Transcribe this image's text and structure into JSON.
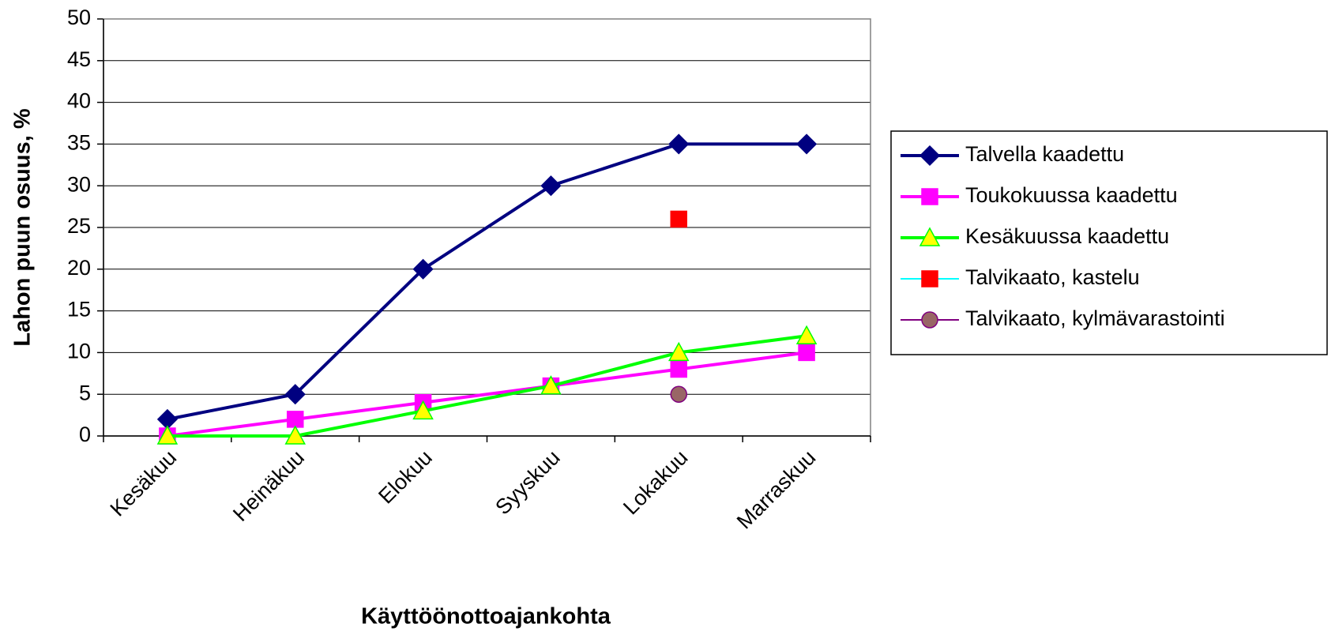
{
  "chart_data": {
    "type": "line",
    "x_label": "Käyttöönottoajankohta",
    "y_label": "Lahon puun osuus, %",
    "categories": [
      "Kesäkuu",
      "Heinäkuu",
      "Elokuu",
      "Syyskuu",
      "Lokakuu",
      "Marraskuu"
    ],
    "series": [
      {
        "name": "Talvella kaadettu",
        "color": "#000080",
        "marker": "diamond",
        "marker_color": "#000080",
        "values": [
          2,
          5,
          20,
          30,
          35,
          35
        ]
      },
      {
        "name": "Toukokuussa kaadettu",
        "color": "#ff00ff",
        "marker": "square",
        "marker_color": "#ff00ff",
        "values": [
          0,
          2,
          4,
          6,
          8,
          10
        ]
      },
      {
        "name": "Kesäkuussa kaadettu",
        "color": "#00ff00",
        "marker": "triangle",
        "marker_color": "#ffff00",
        "values": [
          0,
          0,
          3,
          6,
          10,
          12
        ]
      },
      {
        "name": "Talvikaato, kastelu",
        "color": "#00ffff",
        "marker": "square",
        "marker_color": "#ff0000",
        "values": [
          null,
          null,
          null,
          null,
          26,
          null
        ]
      },
      {
        "name": "Talvikaato, kylmävarastointi",
        "color": "#800080",
        "marker": "circle",
        "marker_color": "#996666",
        "values": [
          null,
          null,
          null,
          null,
          5,
          null
        ]
      }
    ],
    "ylim": [
      0,
      50
    ],
    "yticks": [
      0,
      5,
      10,
      15,
      20,
      25,
      30,
      35,
      40,
      45,
      50
    ],
    "grid": true,
    "legend": "right"
  }
}
